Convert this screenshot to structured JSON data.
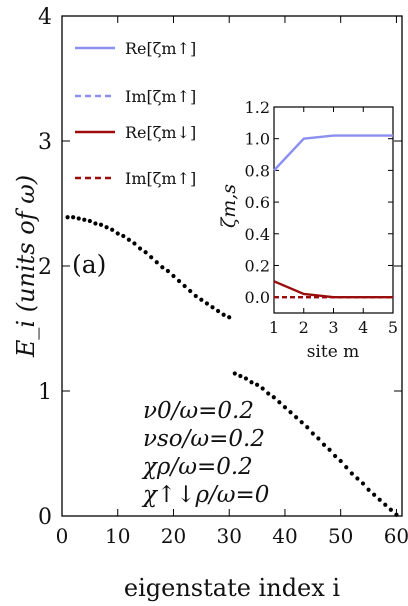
{
  "chart_data": [
    {
      "type": "scatter",
      "panel_label": "(a)",
      "xlabel": "eigenstate index i",
      "ylabel": "E_i (units of ω)",
      "xlim": [
        0,
        61
      ],
      "ylim": [
        0,
        4
      ],
      "xticks": [
        "0",
        "10",
        "20",
        "30",
        "40",
        "50",
        "60"
      ],
      "yticks": [
        "0",
        "1",
        "2",
        "3",
        "4"
      ],
      "marker_color": "#000000",
      "series": [
        {
          "x": [
            1,
            2,
            3,
            4,
            5,
            6,
            7,
            8,
            9,
            10,
            11,
            12,
            13,
            14,
            15,
            16,
            17,
            18,
            19,
            20,
            21,
            22,
            23,
            24,
            25,
            26,
            27,
            28,
            29,
            30
          ],
          "y": [
            2.39,
            2.39,
            2.38,
            2.37,
            2.36,
            2.34,
            2.33,
            2.31,
            2.29,
            2.26,
            2.24,
            2.21,
            2.18,
            2.14,
            2.11,
            2.07,
            2.03,
            1.99,
            1.96,
            1.92,
            1.88,
            1.84,
            1.8,
            1.76,
            1.73,
            1.7,
            1.67,
            1.64,
            1.61,
            1.59
          ]
        },
        {
          "x": [
            31,
            32,
            33,
            34,
            35,
            36,
            37,
            38,
            39,
            40,
            41,
            42,
            43,
            44,
            45,
            46,
            47,
            48,
            49,
            50,
            51,
            52,
            53,
            54,
            55,
            56,
            57,
            58,
            59,
            60
          ],
          "y": [
            1.14,
            1.12,
            1.1,
            1.07,
            1.05,
            1.02,
            0.98,
            0.95,
            0.91,
            0.87,
            0.83,
            0.79,
            0.75,
            0.71,
            0.66,
            0.62,
            0.57,
            0.53,
            0.48,
            0.44,
            0.39,
            0.34,
            0.3,
            0.26,
            0.21,
            0.17,
            0.13,
            0.09,
            0.05,
            0.01
          ]
        }
      ],
      "annotations": [
        "ν0/ω=0.2",
        "νso/ω=0.2",
        "χρ/ω=0.2",
        "χ↑↓ρ/ω=0"
      ]
    },
    {
      "type": "line",
      "xlabel": "site m",
      "ylabel": "ζm,s",
      "xlim": [
        1,
        5
      ],
      "ylim": [
        -0.1,
        1.2
      ],
      "xticks": [
        "1",
        "2",
        "3",
        "4",
        "5"
      ],
      "yticks": [
        "0.0",
        "0.2",
        "0.4",
        "0.6",
        "0.8",
        "1.0",
        "1.2"
      ],
      "x": [
        1,
        2,
        3,
        4,
        5
      ],
      "series": [
        {
          "name": "Re[ζm↑]",
          "values": [
            0.8,
            1.0,
            1.02,
            1.02,
            1.02
          ],
          "color": "#8c8ff0",
          "dash": "solid"
        },
        {
          "name": "Im[ζm↑]",
          "values": [
            0.0,
            0.0,
            0.0,
            0.0,
            0.0
          ],
          "color": "#8c8ff0",
          "dash": "dashed"
        },
        {
          "name": "Re[ζm↓]",
          "values": [
            0.1,
            0.02,
            0.0,
            0.0,
            0.0
          ],
          "color": "#9b0d0d",
          "dash": "solid"
        },
        {
          "name": "Im[ζm↑]",
          "values": [
            0.0,
            0.0,
            0.0,
            0.0,
            0.0
          ],
          "color": "#9b0d0d",
          "dash": "dashed"
        }
      ]
    }
  ]
}
